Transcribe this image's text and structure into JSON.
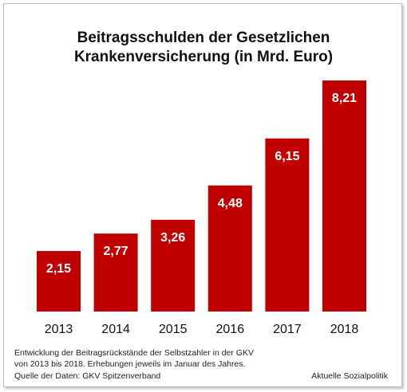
{
  "chart_data": {
    "type": "bar",
    "title_line1": "Beitragsschulden der Gesetzlichen",
    "title_line2": "Krankenversicherung (in Mrd. Euro)",
    "categories": [
      "2013",
      "2014",
      "2015",
      "2016",
      "2017",
      "2018"
    ],
    "values": [
      2.15,
      2.77,
      3.26,
      4.48,
      6.15,
      8.21
    ],
    "value_labels": [
      "2,15",
      "2,77",
      "3,26",
      "4,48",
      "6,15",
      "8,21"
    ],
    "ylim": [
      0,
      8.21
    ],
    "grid": false,
    "bar_color": "#c00000",
    "label_color": "#ffffff"
  },
  "footer": {
    "line1": "Entwicklung der Beitragsrückstände der Selbstzahler in der GKV",
    "line2": "von 2013 bis 2018. Erhebungen jeweils im Januar des Jahres.",
    "line3": "Quelle der Daten: GKV Spitzenverband",
    "brand": "Aktuelle Sozialpolitik"
  }
}
